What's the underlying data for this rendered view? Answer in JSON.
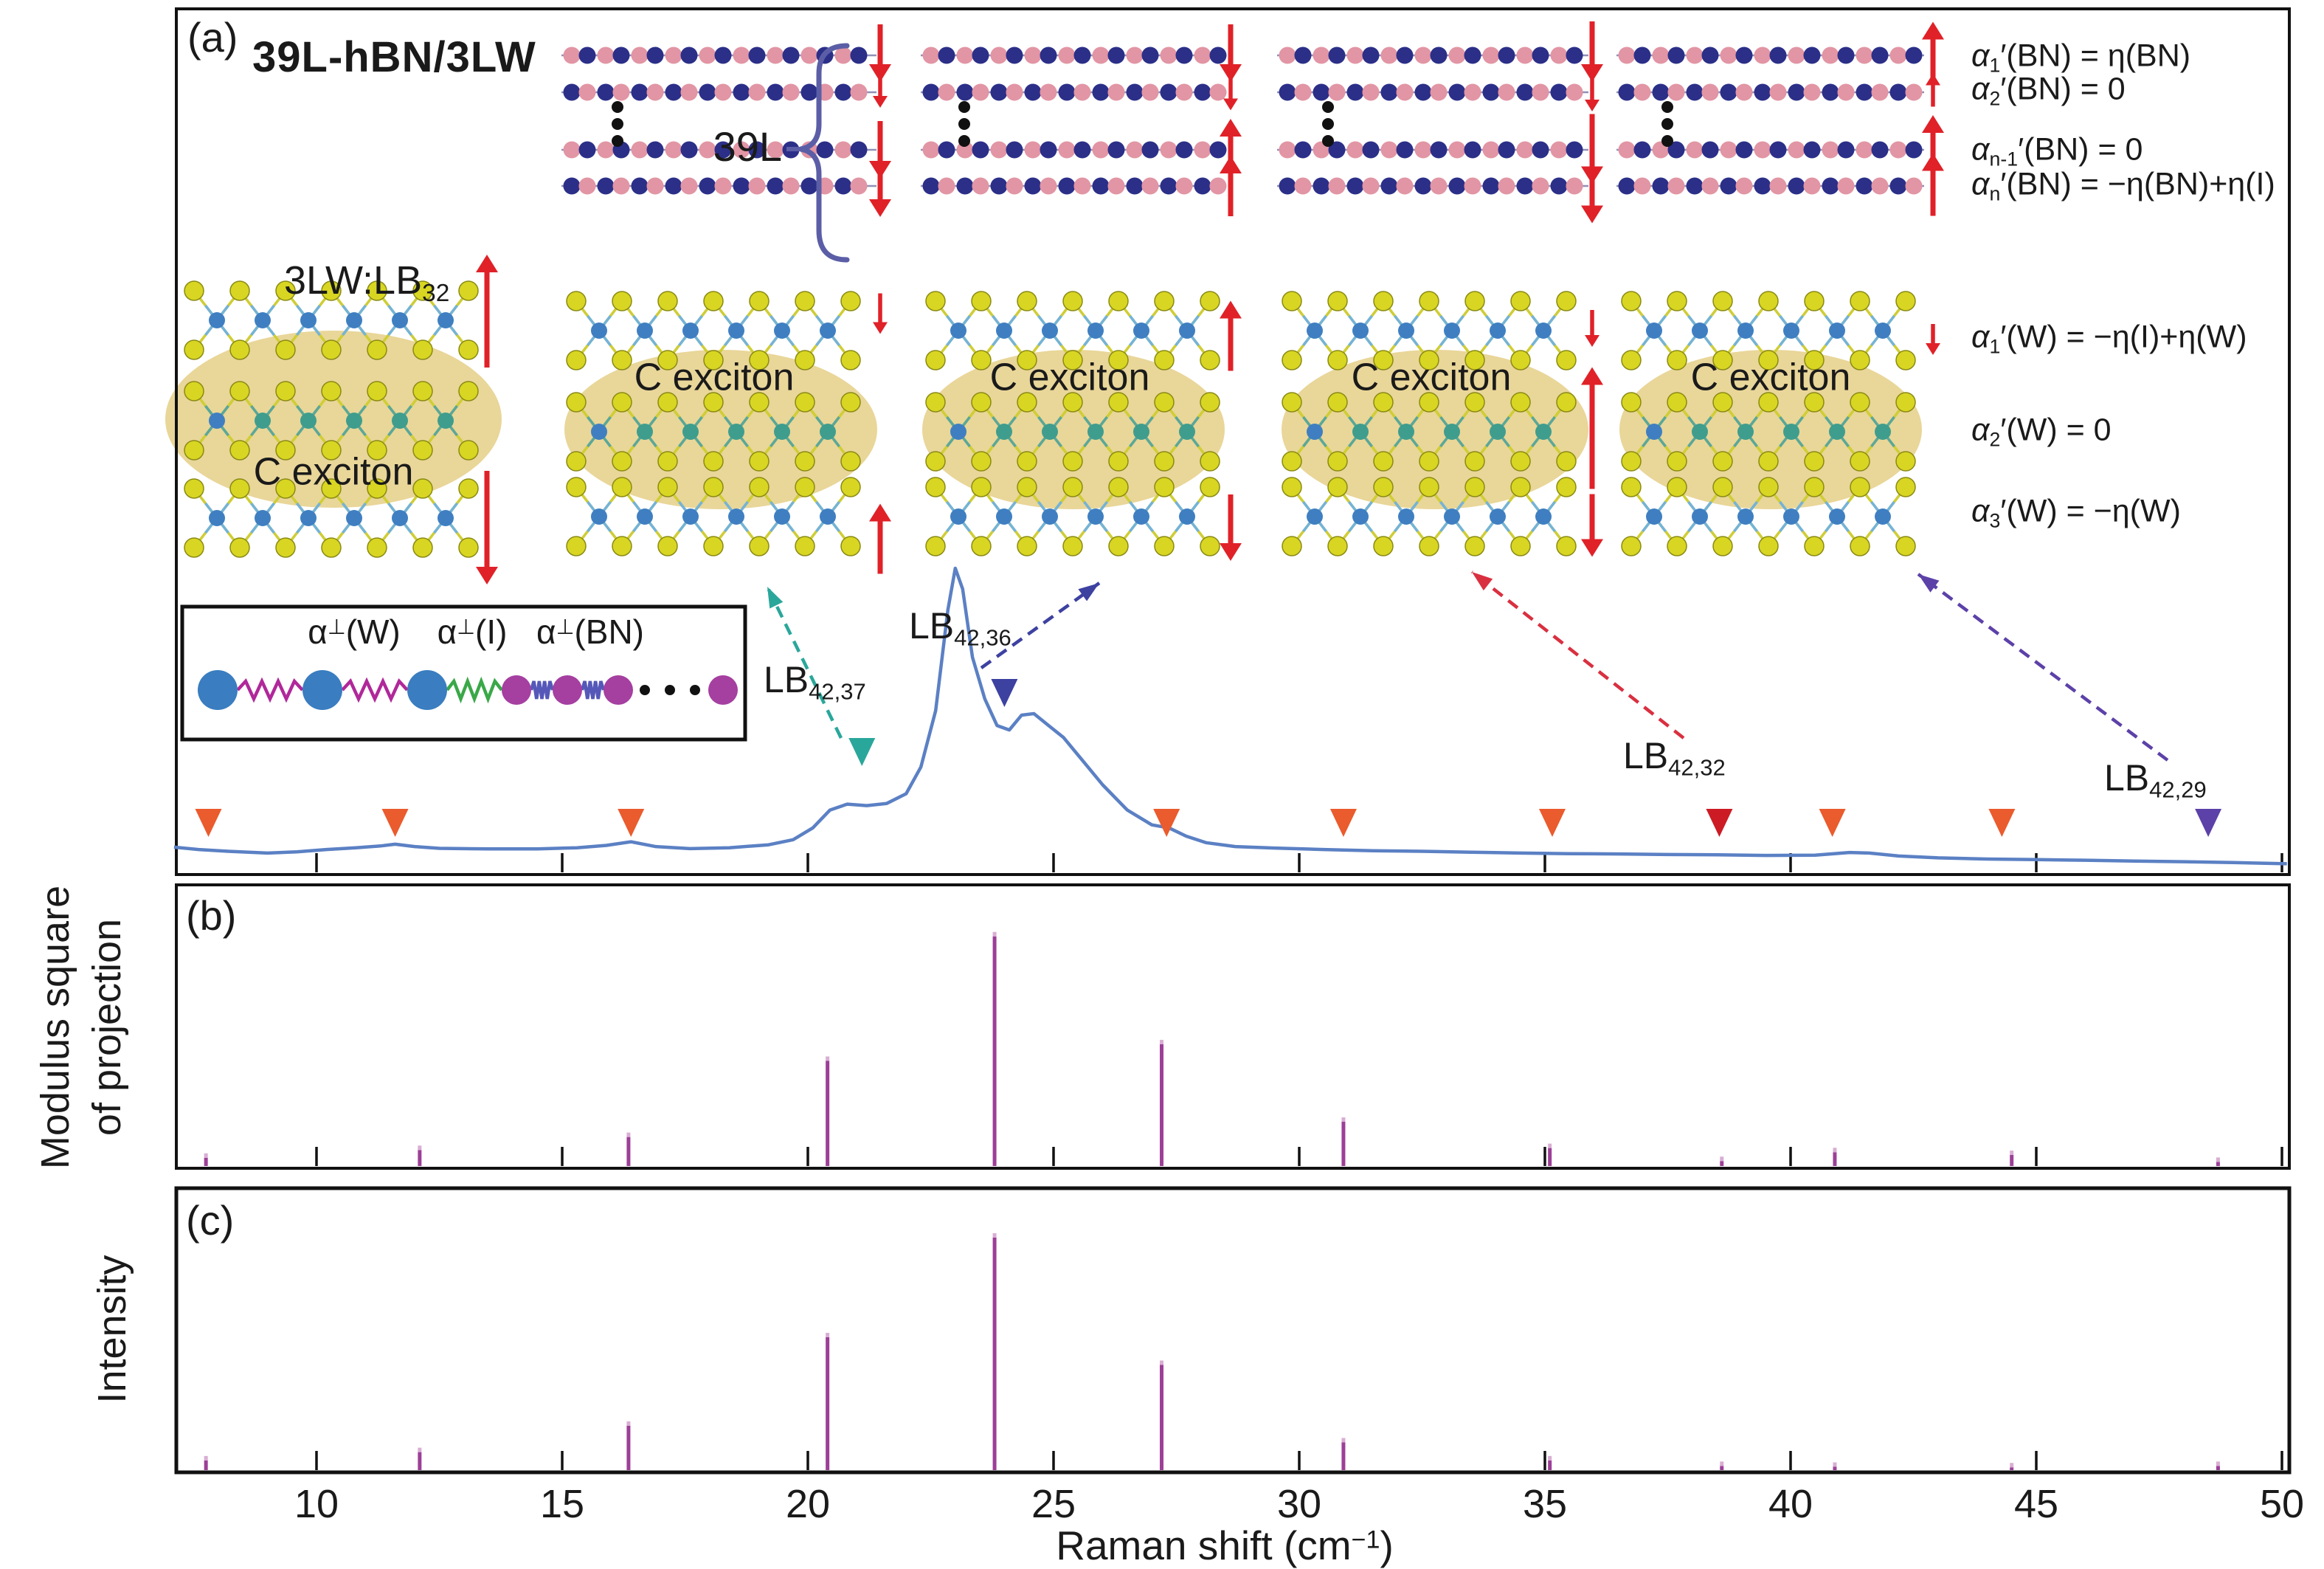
{
  "panel_a": {
    "label": "(a)",
    "title": "39L-hBN/3LW",
    "bracket_label": "39L",
    "lw_label": {
      "base": "3LW:LB",
      "sub": "32"
    },
    "c_exciton": "C exciton",
    "spring_labels": [
      {
        "base": "α",
        "sup": "⊥",
        "rest": "(W)"
      },
      {
        "base": "α",
        "sup": "⊥",
        "rest": "(I)"
      },
      {
        "base": "α",
        "sup": "⊥",
        "rest": "(BN)"
      }
    ],
    "mode_labels": [
      {
        "base": "α",
        "sub": "1",
        "rest": "′(BN) = η(BN)"
      },
      {
        "base": "α",
        "sub": "2",
        "rest": "′(BN) = 0"
      },
      {
        "base": "α",
        "sub": "n-1",
        "rest": "′(BN) = 0"
      },
      {
        "base": "α",
        "sub": "n",
        "rest": "′(BN) = −η(BN)+η(I)"
      },
      {
        "base": "α",
        "sub": "1",
        "rest": "′(W) = −η(I)+η(W)"
      },
      {
        "base": "α",
        "sub": "2",
        "rest": "′(W) = 0"
      },
      {
        "base": "α",
        "sub": "3",
        "rest": "′(W) = −η(W)"
      }
    ],
    "peak_labels": [
      {
        "base": "LB",
        "sub": "42,37"
      },
      {
        "base": "LB",
        "sub": "42,36"
      },
      {
        "base": "LB",
        "sub": "42,32"
      },
      {
        "base": "LB",
        "sub": "42,29"
      }
    ]
  },
  "panel_b": {
    "label": "(b)",
    "ylabel_line1": "Modulus square",
    "ylabel_line2": "of projection"
  },
  "panel_c": {
    "label": "(c)",
    "ylabel": "Intensity"
  },
  "x_axis": {
    "title_pre": "Raman shift (cm",
    "title_sup": "−1",
    "title_post": ")",
    "ticks": [
      "10",
      "15",
      "20",
      "25",
      "30",
      "35",
      "40",
      "45",
      "50"
    ]
  },
  "chart_data": [
    {
      "id": "panel_a_spectrum",
      "type": "line",
      "title": "Raman spectrum of 39L-hBN/3LW",
      "xlabel": "Raman shift (cm−1)",
      "xlim": [
        7.1,
        50.2
      ],
      "points": [
        [
          7.1,
          0.06
        ],
        [
          7.6,
          0.052
        ],
        [
          8.2,
          0.046
        ],
        [
          9.0,
          0.04
        ],
        [
          9.6,
          0.044
        ],
        [
          10.2,
          0.052
        ],
        [
          10.8,
          0.058
        ],
        [
          11.3,
          0.064
        ],
        [
          11.6,
          0.07
        ],
        [
          12.0,
          0.062
        ],
        [
          12.5,
          0.056
        ],
        [
          13.5,
          0.054
        ],
        [
          14.5,
          0.054
        ],
        [
          15.3,
          0.058
        ],
        [
          15.9,
          0.066
        ],
        [
          16.4,
          0.078
        ],
        [
          16.9,
          0.062
        ],
        [
          17.6,
          0.055
        ],
        [
          18.4,
          0.058
        ],
        [
          19.2,
          0.068
        ],
        [
          19.7,
          0.085
        ],
        [
          20.1,
          0.125
        ],
        [
          20.45,
          0.185
        ],
        [
          20.8,
          0.205
        ],
        [
          21.2,
          0.2
        ],
        [
          21.6,
          0.207
        ],
        [
          22.0,
          0.24
        ],
        [
          22.3,
          0.33
        ],
        [
          22.6,
          0.52
        ],
        [
          22.85,
          0.86
        ],
        [
          23.0,
          1.0
        ],
        [
          23.15,
          0.93
        ],
        [
          23.35,
          0.7
        ],
        [
          23.6,
          0.56
        ],
        [
          23.85,
          0.47
        ],
        [
          24.1,
          0.455
        ],
        [
          24.35,
          0.505
        ],
        [
          24.6,
          0.51
        ],
        [
          24.9,
          0.47
        ],
        [
          25.2,
          0.43
        ],
        [
          25.6,
          0.35
        ],
        [
          26.0,
          0.27
        ],
        [
          26.5,
          0.185
        ],
        [
          27.0,
          0.135
        ],
        [
          27.35,
          0.125
        ],
        [
          27.7,
          0.097
        ],
        [
          28.1,
          0.075
        ],
        [
          28.7,
          0.062
        ],
        [
          29.5,
          0.057
        ],
        [
          30.5,
          0.052
        ],
        [
          31.5,
          0.048
        ],
        [
          32.5,
          0.046
        ],
        [
          33.5,
          0.043
        ],
        [
          34.5,
          0.04
        ],
        [
          35.5,
          0.038
        ],
        [
          36.5,
          0.037
        ],
        [
          37.5,
          0.035
        ],
        [
          38.5,
          0.034
        ],
        [
          39.5,
          0.032
        ],
        [
          40.5,
          0.033
        ],
        [
          41.2,
          0.042
        ],
        [
          41.6,
          0.04
        ],
        [
          42.2,
          0.03
        ],
        [
          43.0,
          0.024
        ],
        [
          44.0,
          0.02
        ],
        [
          45.0,
          0.018
        ],
        [
          46.0,
          0.016
        ],
        [
          47.0,
          0.013
        ],
        [
          48.0,
          0.011
        ],
        [
          49.0,
          0.008
        ],
        [
          50.1,
          0.004
        ]
      ],
      "markers": {
        "orange": [
          7.8,
          11.6,
          16.4,
          27.3,
          30.9,
          35.15,
          40.85,
          44.3
        ],
        "dark_red": [
          38.55
        ],
        "purple": [
          48.5
        ],
        "teal": [
          21.1
        ],
        "navy": [
          24.0
        ]
      },
      "annotations": [
        {
          "label": "LB42,37",
          "x": 21.1
        },
        {
          "label": "LB42,36",
          "x": 24.0
        },
        {
          "label": "LB42,32",
          "x": 38.55
        },
        {
          "label": "LB42,29",
          "x": 48.5
        }
      ]
    },
    {
      "id": "panel_b_projection",
      "type": "stick",
      "ylabel": "Modulus square of projection",
      "x": [
        7.75,
        12.1,
        16.35,
        20.4,
        23.8,
        27.2,
        30.9,
        35.1,
        38.6,
        40.9,
        44.5,
        48.7
      ],
      "heights": [
        0.03,
        0.058,
        0.105,
        0.38,
        0.83,
        0.44,
        0.16,
        0.065,
        0.018,
        0.05,
        0.04,
        0.015
      ]
    },
    {
      "id": "panel_c_intensity",
      "type": "stick",
      "ylabel": "Intensity",
      "x": [
        7.75,
        12.1,
        16.35,
        20.4,
        23.8,
        27.2,
        30.9,
        35.1,
        38.6,
        40.9,
        44.5,
        48.7
      ],
      "heights": [
        0.035,
        0.065,
        0.16,
        0.48,
        0.84,
        0.38,
        0.1,
        0.035,
        0.015,
        0.012,
        0.01,
        0.015
      ]
    }
  ],
  "colors": {
    "frame": "#111111",
    "spectrum": "#5b80c4",
    "stick": "#9c3f97",
    "orange": "#ea5b2d",
    "dark_red": "#cc1b24",
    "teal": "#2aa79b",
    "navy": "#3d41a0",
    "purple": "#5c41a8",
    "arrow_red": "#e02128",
    "hbn_blue": "#2b2f88",
    "hbn_pink": "#e295a4",
    "s_yellow": "#d8d622",
    "w_blue": "#3f7fc1",
    "w_teal": "#3f9d8d",
    "ellipse": "#e8d494",
    "brace": "#5b5ea6",
    "spring_magenta": "#b0289a",
    "spring_green": "#3aa848",
    "spring_blue": "#5558b8"
  }
}
